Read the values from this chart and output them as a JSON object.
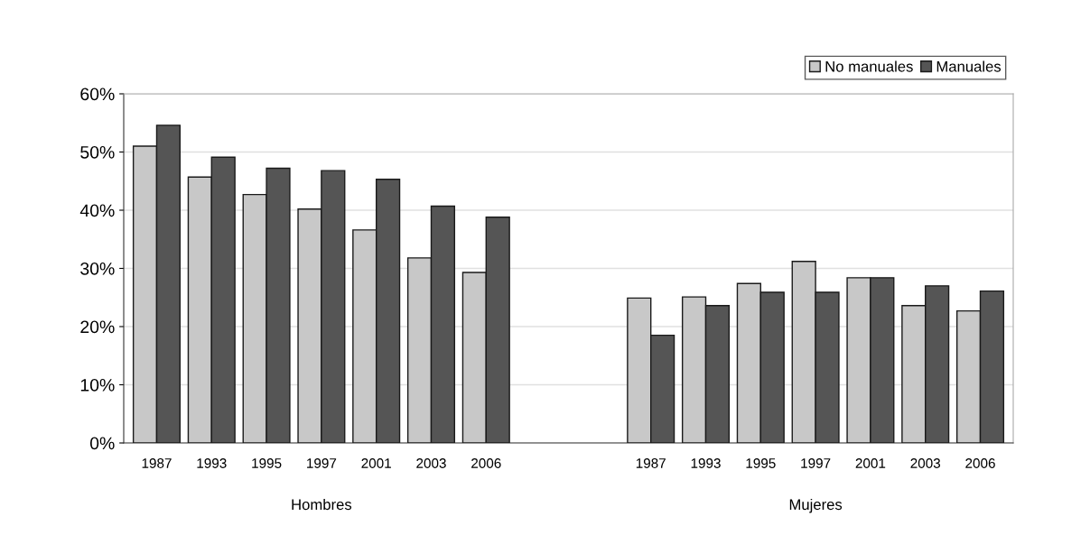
{
  "chart_data": {
    "type": "bar",
    "categories": [
      "1987",
      "1993",
      "1995",
      "1997",
      "2001",
      "2003",
      "2006",
      null,
      null,
      "1987",
      "1993",
      "1995",
      "1997",
      "2001",
      "2003",
      "2006"
    ],
    "series": [
      {
        "name": "No manuales",
        "color": "#c8c8c8",
        "values": [
          51.0,
          45.7,
          42.7,
          40.2,
          36.6,
          31.8,
          29.3,
          null,
          null,
          24.9,
          25.1,
          27.4,
          31.2,
          28.4,
          23.6,
          22.7
        ]
      },
      {
        "name": "Manuales",
        "color": "#555555",
        "values": [
          54.6,
          49.1,
          47.2,
          46.8,
          45.3,
          40.7,
          38.8,
          null,
          null,
          18.5,
          23.6,
          25.9,
          25.9,
          28.4,
          27.0,
          26.1
        ]
      }
    ],
    "annotations": [
      "Hombres",
      "Mujeres"
    ],
    "ylim": [
      0,
      60
    ],
    "yticks": [
      {
        "value": 0,
        "label": "0%"
      },
      {
        "value": 10,
        "label": "10%"
      },
      {
        "value": 20,
        "label": "20%"
      },
      {
        "value": 30,
        "label": "30%"
      },
      {
        "value": 40,
        "label": "40%"
      },
      {
        "value": 50,
        "label": "50%"
      },
      {
        "value": 60,
        "label": "60%"
      }
    ],
    "grid": "y",
    "legend": "top right"
  }
}
